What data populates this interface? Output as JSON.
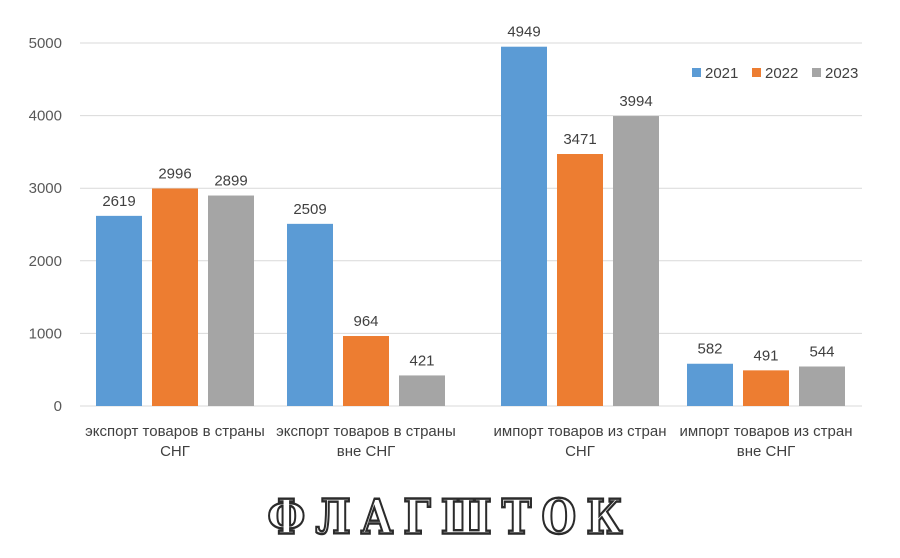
{
  "chart_data": {
    "type": "bar",
    "title": "",
    "xlabel": "",
    "ylabel": "",
    "ylim": [
      0,
      5000
    ],
    "yticks": [
      0,
      1000,
      2000,
      3000,
      4000,
      5000
    ],
    "grid": true,
    "legend_position": "top-right",
    "categories": [
      [
        "экспорт товаров в страны",
        "СНГ"
      ],
      [
        "экспорт товаров в страны",
        "вне СНГ"
      ],
      [
        "импорт товаров из стран",
        "СНГ"
      ],
      [
        "импорт товаров из стран",
        "вне СНГ"
      ]
    ],
    "series": [
      {
        "name": "2021",
        "color": "#5b9bd5",
        "values": [
          2619,
          2509,
          4949,
          582
        ]
      },
      {
        "name": "2022",
        "color": "#ed7d31",
        "values": [
          2996,
          964,
          3471,
          491
        ]
      },
      {
        "name": "2023",
        "color": "#a5a5a5",
        "values": [
          2899,
          421,
          3994,
          544
        ]
      }
    ]
  },
  "watermark": "ФЛАГШТОК"
}
